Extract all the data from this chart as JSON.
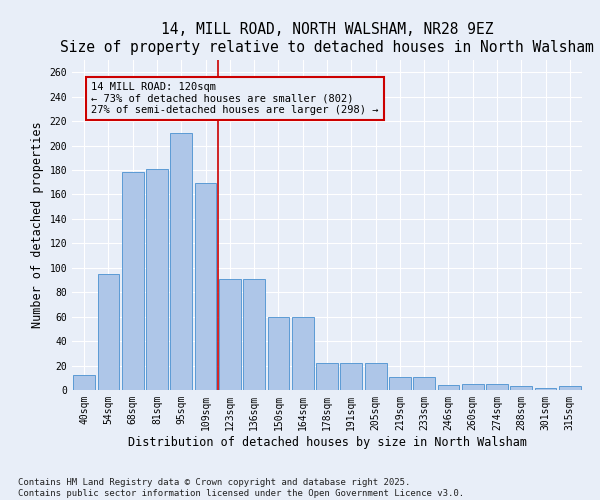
{
  "title1": "14, MILL ROAD, NORTH WALSHAM, NR28 9EZ",
  "title2": "Size of property relative to detached houses in North Walsham",
  "xlabel": "Distribution of detached houses by size in North Walsham",
  "ylabel": "Number of detached properties",
  "categories": [
    "40sqm",
    "54sqm",
    "68sqm",
    "81sqm",
    "95sqm",
    "109sqm",
    "123sqm",
    "136sqm",
    "150sqm",
    "164sqm",
    "178sqm",
    "191sqm",
    "205sqm",
    "219sqm",
    "233sqm",
    "246sqm",
    "260sqm",
    "274sqm",
    "288sqm",
    "301sqm",
    "315sqm"
  ],
  "values": [
    12,
    95,
    178,
    181,
    210,
    169,
    91,
    91,
    60,
    60,
    22,
    22,
    22,
    11,
    11,
    4,
    5,
    5,
    3,
    2,
    3
  ],
  "bar_color": "#aec6e8",
  "bar_edgecolor": "#5b9bd5",
  "annotation_line1": "14 MILL ROAD: 120sqm",
  "annotation_line2": "← 73% of detached houses are smaller (802)",
  "annotation_line3": "27% of semi-detached houses are larger (298) →",
  "vline_color": "#cc0000",
  "annotation_box_edgecolor": "#cc0000",
  "ylim": [
    0,
    270
  ],
  "yticks": [
    0,
    20,
    40,
    60,
    80,
    100,
    120,
    140,
    160,
    180,
    200,
    220,
    240,
    260
  ],
  "background_color": "#e8eef8",
  "grid_color": "#ffffff",
  "footer": "Contains HM Land Registry data © Crown copyright and database right 2025.\nContains public sector information licensed under the Open Government Licence v3.0.",
  "title_fontsize": 10.5,
  "label_fontsize": 8.5,
  "tick_fontsize": 7,
  "footer_fontsize": 6.5,
  "annot_fontsize": 7.5
}
